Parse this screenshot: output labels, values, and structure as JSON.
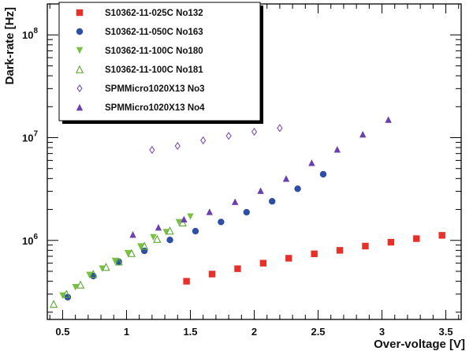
{
  "chart_data": {
    "type": "scatter",
    "xlabel": "Over-voltage [V]",
    "ylabel": "Dark-rate [Hz]",
    "xlim": [
      0.38,
      3.62
    ],
    "ylim": [
      170000,
      200000000
    ],
    "yscale": "log",
    "grid": false,
    "legend_position": "top-left",
    "x_ticks": [
      "0.5",
      "1",
      "1.5",
      "2",
      "2.5",
      "3",
      "3.5"
    ],
    "y_ticks": [
      {
        "base": "10",
        "exp": "6"
      },
      {
        "base": "10",
        "exp": "7"
      },
      {
        "base": "10",
        "exp": "8"
      }
    ],
    "series": [
      {
        "name": "S10362-11-025C No132",
        "marker": "filled-square",
        "color": "#e8302b",
        "points": [
          [
            1.47,
            400000
          ],
          [
            1.67,
            470000
          ],
          [
            1.87,
            530000
          ],
          [
            2.07,
            600000
          ],
          [
            2.27,
            670000
          ],
          [
            2.47,
            740000
          ],
          [
            2.67,
            800000
          ],
          [
            2.87,
            880000
          ],
          [
            3.07,
            960000
          ],
          [
            3.27,
            1040000
          ],
          [
            3.47,
            1120000
          ]
        ]
      },
      {
        "name": "S10362-11-050C No163",
        "marker": "filled-circle",
        "color": "#2f4fa6",
        "points": [
          [
            0.54,
            280000
          ],
          [
            0.74,
            450000
          ],
          [
            0.94,
            620000
          ],
          [
            1.14,
            790000
          ],
          [
            1.34,
            1010000
          ],
          [
            1.54,
            1230000
          ],
          [
            1.74,
            1510000
          ],
          [
            1.94,
            1880000
          ],
          [
            2.14,
            2400000
          ],
          [
            2.34,
            3180000
          ],
          [
            2.54,
            4400000
          ]
        ]
      },
      {
        "name": "S10362-11-100C No180",
        "marker": "filled-triangle-down",
        "color": "#7ac142",
        "points": [
          [
            0.5,
            290000
          ],
          [
            0.6,
            350000
          ],
          [
            0.71,
            460000
          ],
          [
            0.81,
            530000
          ],
          [
            0.91,
            630000
          ],
          [
            1.01,
            750000
          ],
          [
            1.11,
            870000
          ],
          [
            1.21,
            1070000
          ],
          [
            1.31,
            1200000
          ],
          [
            1.41,
            1500000
          ],
          [
            1.5,
            1700000
          ]
        ]
      },
      {
        "name": "S10362-11-100C No181",
        "marker": "open-triangle",
        "color": "#5aa832",
        "points": [
          [
            0.43,
            240000
          ],
          [
            0.53,
            300000
          ],
          [
            0.64,
            370000
          ],
          [
            0.74,
            470000
          ],
          [
            0.84,
            550000
          ],
          [
            0.94,
            620000
          ],
          [
            1.04,
            750000
          ],
          [
            1.14,
            880000
          ],
          [
            1.24,
            1030000
          ],
          [
            1.34,
            1240000
          ],
          [
            1.44,
            1490000
          ]
        ]
      },
      {
        "name": "SPMMicro1020X13 No3",
        "marker": "open-diamond",
        "color": "#7a4fb0",
        "points": [
          [
            1.2,
            7600000
          ],
          [
            1.4,
            8300000
          ],
          [
            1.6,
            9400000
          ],
          [
            1.8,
            10400000
          ],
          [
            2.0,
            11400000
          ],
          [
            2.2,
            12400000
          ]
        ]
      },
      {
        "name": "SPMMicro1020X13 No4",
        "marker": "filled-triangle",
        "color": "#6a3fb0",
        "points": [
          [
            1.05,
            1140000
          ],
          [
            1.25,
            1340000
          ],
          [
            1.45,
            1610000
          ],
          [
            1.65,
            1900000
          ],
          [
            1.85,
            2380000
          ],
          [
            2.05,
            3050000
          ],
          [
            2.25,
            4000000
          ],
          [
            2.45,
            5700000
          ],
          [
            2.65,
            7700000
          ],
          [
            2.85,
            10800000
          ],
          [
            3.05,
            15000000
          ]
        ]
      }
    ]
  }
}
